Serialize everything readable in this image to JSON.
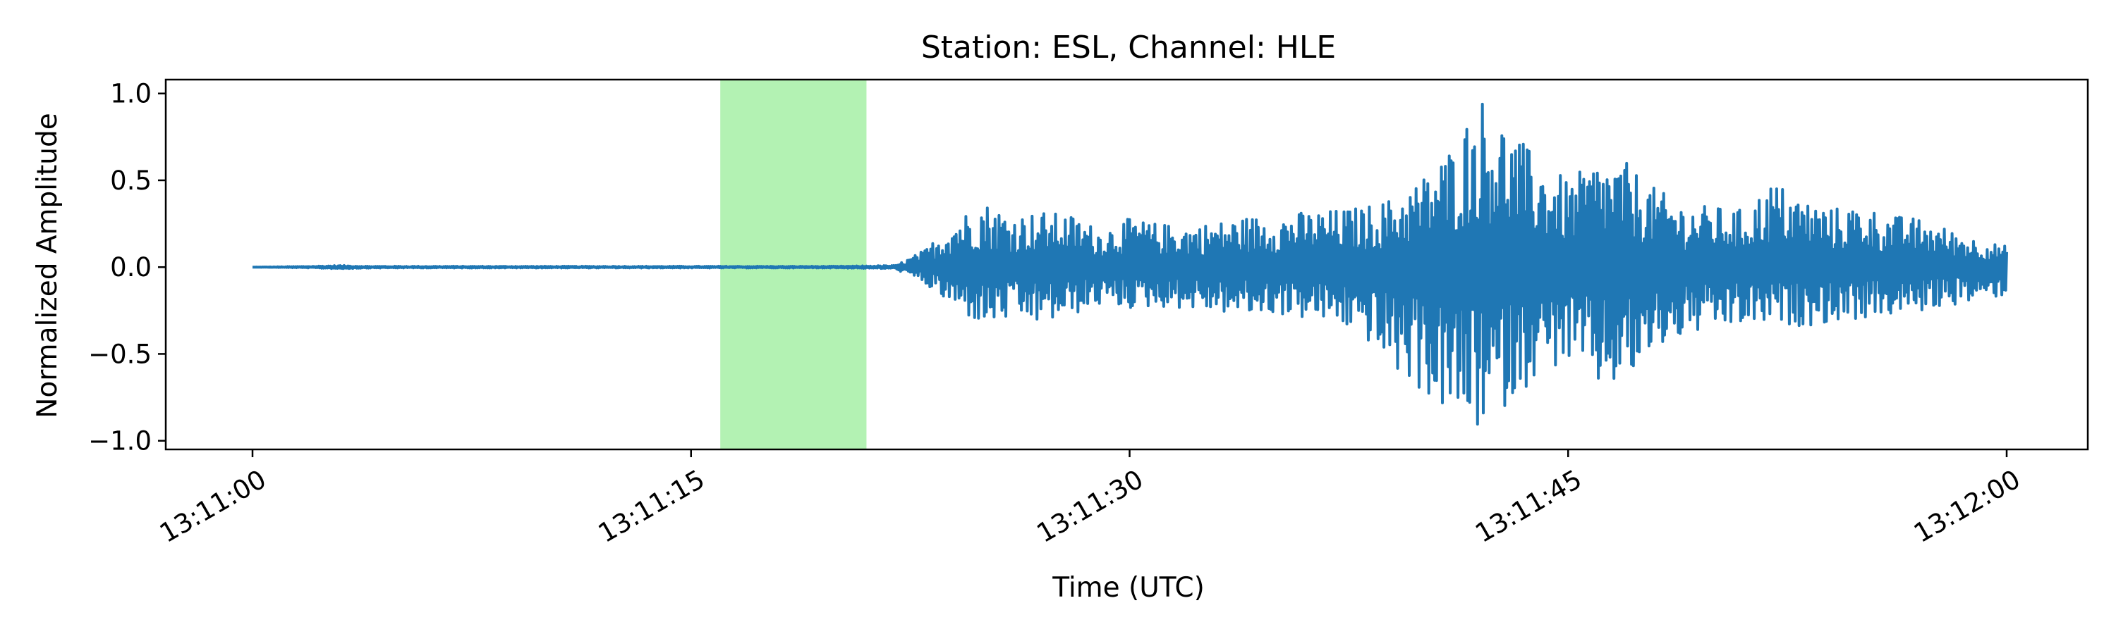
{
  "chart_data": {
    "type": "line",
    "title": "Station: ESL, Channel: HLE",
    "xlabel": "Time (UTC)",
    "ylabel": "Normalized Amplitude",
    "x_range": [
      "13:11:00",
      "13:12:00"
    ],
    "x_ticks": [
      "13:11:00",
      "13:11:15",
      "13:11:30",
      "13:11:45",
      "13:12:00"
    ],
    "ylim": [
      -1.05,
      1.08
    ],
    "y_ticks": [
      {
        "value": 1.0,
        "label": "1.0"
      },
      {
        "value": 0.5,
        "label": "0.5"
      },
      {
        "value": 0.0,
        "label": "0.0"
      },
      {
        "value": -0.5,
        "label": "−0.5"
      },
      {
        "value": -1.0,
        "label": "−1.0"
      }
    ],
    "grid": false,
    "highlight_window": {
      "start": "13:11:16",
      "end": "13:11:21",
      "color": "#b3f2b3"
    },
    "series": [
      {
        "color": "#1f77b4",
        "x": [
          "13:11:00",
          "13:11:02",
          "13:11:03",
          "13:11:04",
          "13:11:08",
          "13:11:12",
          "13:11:16",
          "13:11:20",
          "13:11:22",
          "13:11:23",
          "13:11:24",
          "13:11:25",
          "13:11:26",
          "13:11:27",
          "13:11:28",
          "13:11:29",
          "13:11:30",
          "13:11:31",
          "13:11:32",
          "13:11:33",
          "13:11:34",
          "13:11:35",
          "13:11:36",
          "13:11:37",
          "13:11:38",
          "13:11:39",
          "13:11:40",
          "13:11:41",
          "13:11:42",
          "13:11:43",
          "13:11:44",
          "13:11:45",
          "13:11:46",
          "13:11:47",
          "13:11:48",
          "13:11:49",
          "13:11:50",
          "13:11:51",
          "13:11:52",
          "13:11:53",
          "13:11:54",
          "13:11:55",
          "13:11:56",
          "13:11:57",
          "13:11:58",
          "13:11:59",
          "13:12:00"
        ],
        "envelope_max": [
          0.0,
          0.005,
          0.01,
          0.005,
          0.005,
          0.005,
          0.005,
          0.005,
          0.01,
          0.1,
          0.28,
          0.38,
          0.3,
          0.32,
          0.3,
          0.22,
          0.28,
          0.25,
          0.24,
          0.26,
          0.29,
          0.3,
          0.32,
          0.33,
          0.35,
          0.4,
          0.52,
          0.7,
          1.0,
          0.8,
          0.62,
          0.5,
          0.62,
          0.6,
          0.45,
          0.36,
          0.35,
          0.33,
          0.5,
          0.4,
          0.34,
          0.36,
          0.3,
          0.28,
          0.22,
          0.16,
          0.12
        ],
        "envelope_min": [
          0.0,
          -0.005,
          -0.01,
          -0.005,
          -0.005,
          -0.005,
          -0.005,
          -0.005,
          -0.01,
          -0.1,
          -0.24,
          -0.34,
          -0.3,
          -0.33,
          -0.28,
          -0.22,
          -0.24,
          -0.23,
          -0.24,
          -0.26,
          -0.28,
          -0.27,
          -0.3,
          -0.32,
          -0.4,
          -0.6,
          -0.72,
          -0.88,
          -0.95,
          -0.78,
          -0.62,
          -0.55,
          -0.7,
          -0.68,
          -0.48,
          -0.4,
          -0.36,
          -0.34,
          -0.33,
          -0.34,
          -0.32,
          -0.3,
          -0.28,
          -0.26,
          -0.22,
          -0.2,
          -0.16
        ]
      }
    ]
  }
}
